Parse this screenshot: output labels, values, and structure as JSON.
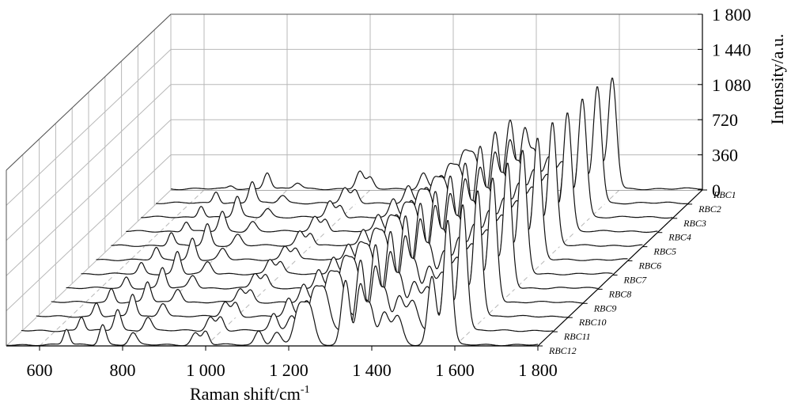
{
  "chart_data": {
    "type": "line",
    "style": "3d-waterfall",
    "title": "",
    "xlabel": "Raman shift/cm",
    "xlabel_superscript": "-1",
    "zlabel": "Intensity/a.u.",
    "x_ticks": [
      "600",
      "800",
      "1 000",
      "1 200",
      "1 400",
      "1 600",
      "1 800"
    ],
    "x_tick_values": [
      600,
      800,
      1000,
      1200,
      1400,
      1600,
      1800
    ],
    "xlim": [
      520,
      1800
    ],
    "z_ticks": [
      "0",
      "360",
      "720",
      "1 080",
      "1 440",
      "1 800"
    ],
    "z_tick_values": [
      0,
      360,
      720,
      1080,
      1440,
      1800
    ],
    "zlim": [
      0,
      1800
    ],
    "series_labels": [
      "RBC1",
      "RBC2",
      "RBC3",
      "RBC4",
      "RBC5",
      "RBC6",
      "RBC7",
      "RBC8",
      "RBC9",
      "RBC10",
      "RBC11",
      "RBC12"
    ],
    "grid": true,
    "peaks": [
      {
        "x": 665,
        "w": 7,
        "h": [
          30,
          120,
          120,
          100,
          130,
          120,
          110,
          110,
          140,
          140,
          140,
          160
        ]
      },
      {
        "x": 752,
        "w": 8,
        "h": [
          170,
          220,
          210,
          200,
          220,
          220,
          230,
          210,
          210,
          230,
          220,
          210
        ]
      },
      {
        "x": 825,
        "w": 9,
        "h": [
          60,
          80,
          90,
          100,
          110,
          110,
          120,
          130,
          140,
          140,
          140,
          120
        ]
      },
      {
        "x": 975,
        "w": 9,
        "h": [
          180,
          150,
          160,
          150,
          150,
          140,
          150,
          150,
          140,
          150,
          140,
          120
        ]
      },
      {
        "x": 1000,
        "w": 8,
        "h": [
          110,
          130,
          120,
          130,
          130,
          120,
          120,
          130,
          120,
          140,
          140,
          140
        ]
      },
      {
        "x": 1128,
        "w": 9,
        "h": [
          160,
          170,
          180,
          170,
          170,
          170,
          180,
          190,
          180,
          180,
          170,
          140
        ]
      },
      {
        "x": 1171,
        "w": 10,
        "h": [
          140,
          160,
          170,
          170,
          160,
          160,
          170,
          170,
          170,
          170,
          160,
          130
        ]
      },
      {
        "x": 1225,
        "w": 12,
        "h": [
          350,
          360,
          370,
          380,
          380,
          390,
          400,
          410,
          420,
          410,
          400,
          380
        ]
      },
      {
        "x": 1250,
        "w": 12,
        "h": [
          330,
          340,
          350,
          360,
          370,
          370,
          380,
          390,
          400,
          400,
          390,
          370
        ]
      },
      {
        "x": 1337,
        "w": 10,
        "h": [
          700,
          720,
          720,
          700,
          720,
          710,
          730,
          740,
          720,
          730,
          720,
          660
        ]
      },
      {
        "x": 1372,
        "w": 9,
        "h": [
          600,
          620,
          640,
          630,
          650,
          640,
          660,
          670,
          650,
          640,
          640,
          600
        ]
      },
      {
        "x": 1395,
        "w": 10,
        "h": [
          380,
          400,
          420,
          410,
          420,
          410,
          420,
          430,
          420,
          420,
          410,
          400
        ]
      },
      {
        "x": 1430,
        "w": 11,
        "h": [
          320,
          340,
          350,
          340,
          350,
          350,
          360,
          370,
          360,
          350,
          350,
          330
        ]
      },
      {
        "x": 1462,
        "w": 12,
        "h": [
          280,
          290,
          300,
          300,
          300,
          300,
          310,
          320,
          310,
          300,
          300,
          290
        ]
      },
      {
        "x": 1545,
        "w": 10,
        "h": [
          650,
          700,
          720,
          720,
          740,
          740,
          760,
          760,
          760,
          760,
          740,
          700
        ]
      },
      {
        "x": 1583,
        "w": 10,
        "h": [
          1140,
          1200,
          1220,
          1220,
          1260,
          1240,
          1260,
          1280,
          1280,
          1300,
          1300,
          1280
        ]
      }
    ]
  }
}
